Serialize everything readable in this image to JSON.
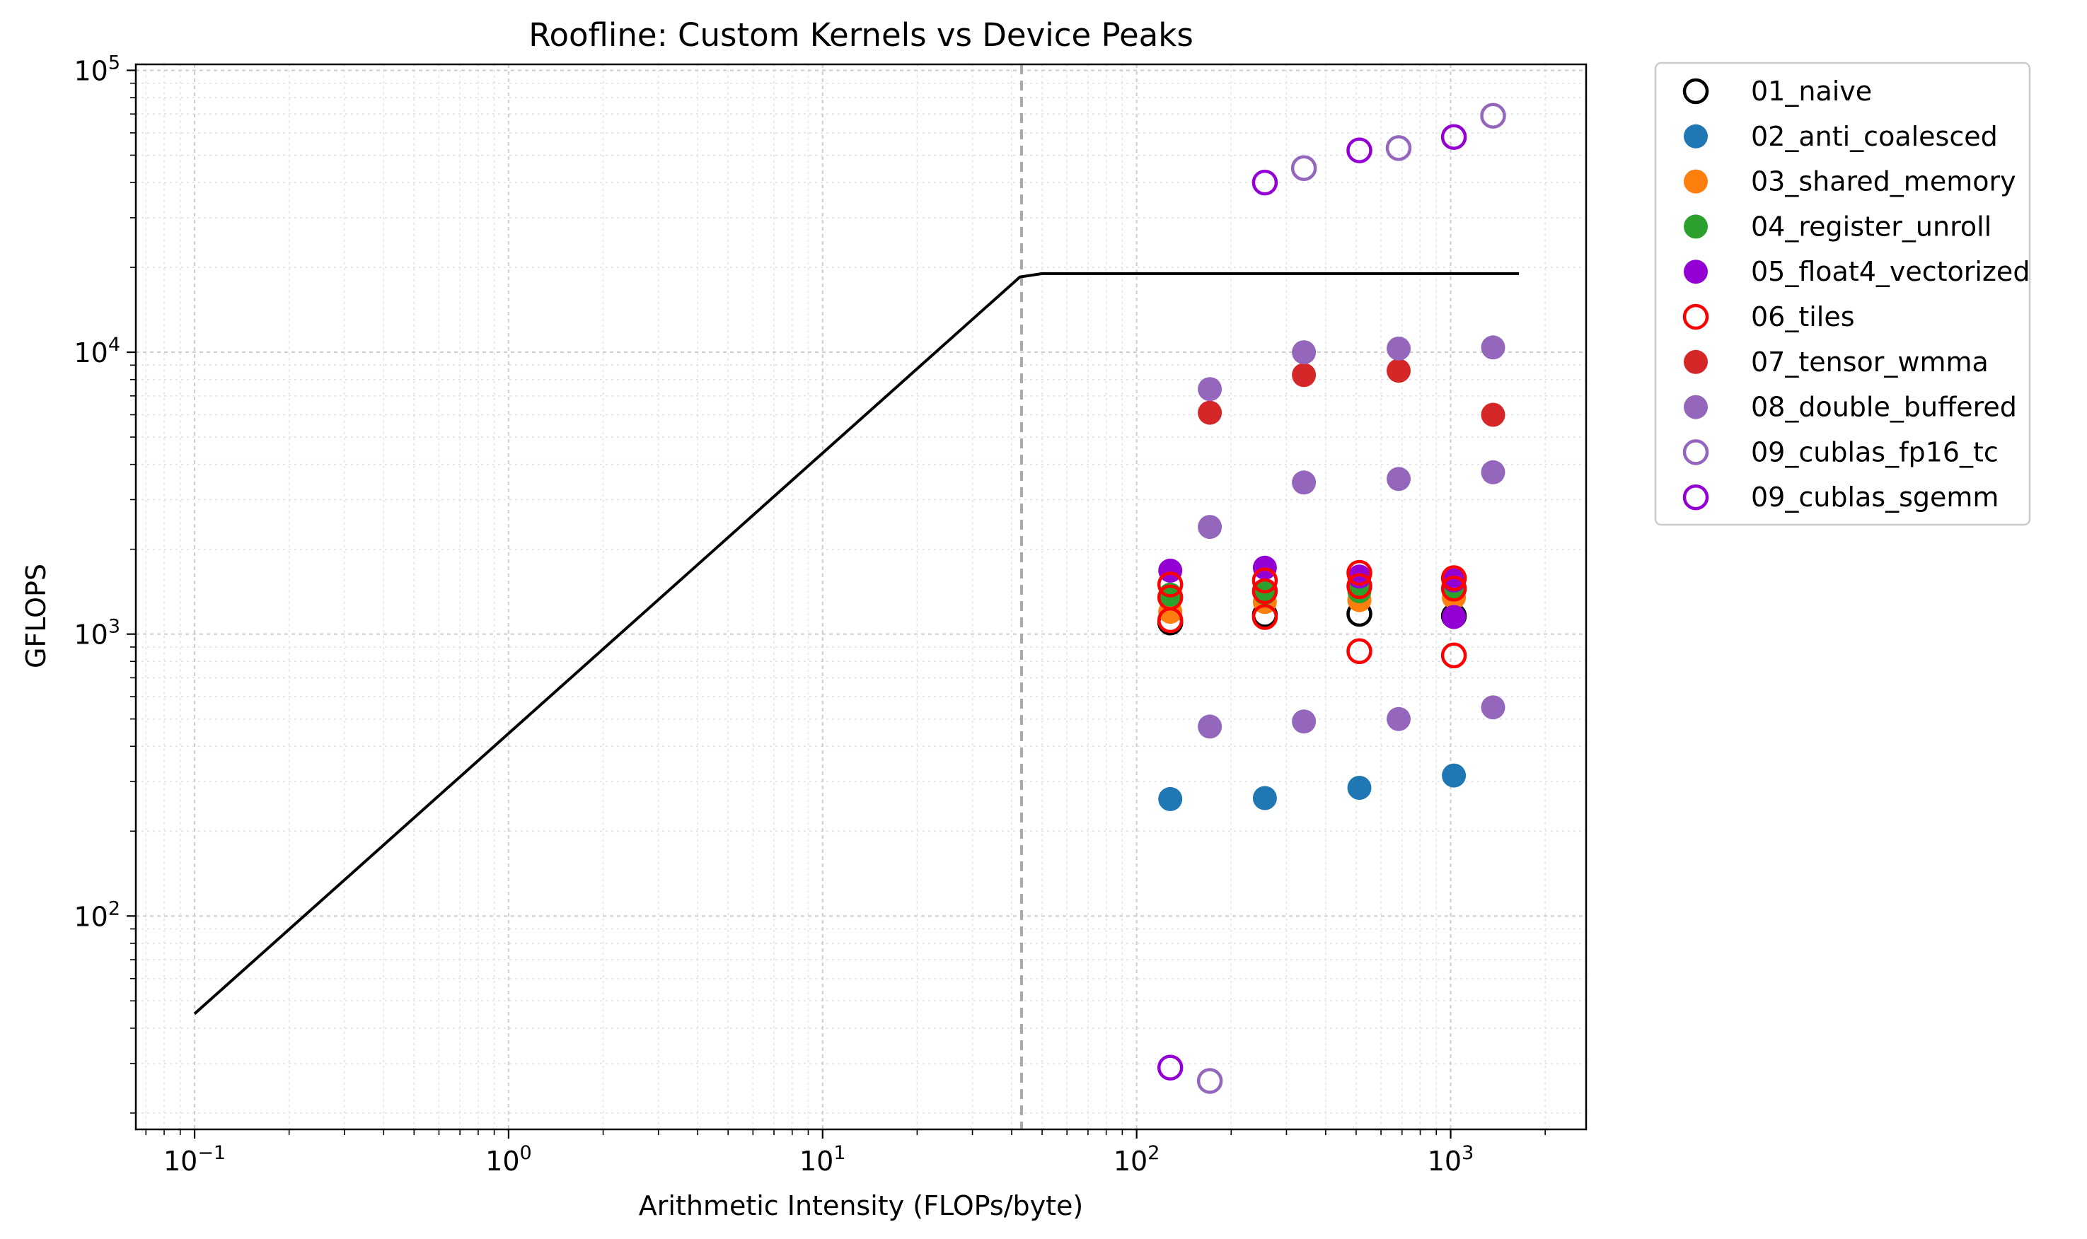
{
  "chart_data": {
    "type": "scatter",
    "title": "Roofline: Custom Kernels vs Device Peaks",
    "xlabel": "Arithmetic Intensity (FLOPs/byte)",
    "ylabel": "GFLOPS",
    "xscale": "log",
    "yscale": "log",
    "xlim": [
      0.065,
      2700
    ],
    "ylim": [
      17.5,
      105000
    ],
    "grid": true,
    "legend_position": "outside-right",
    "x_ticks": [
      {
        "value": 0.1,
        "base": "10",
        "exp": "−1"
      },
      {
        "value": 1,
        "base": "10",
        "exp": "0"
      },
      {
        "value": 10,
        "base": "10",
        "exp": "1"
      },
      {
        "value": 100,
        "base": "10",
        "exp": "2"
      },
      {
        "value": 1000,
        "base": "10",
        "exp": "3"
      }
    ],
    "y_ticks": [
      {
        "value": 100,
        "base": "10",
        "exp": "2"
      },
      {
        "value": 1000,
        "base": "10",
        "exp": "3"
      },
      {
        "value": 10000,
        "base": "10",
        "exp": "4"
      },
      {
        "value": 100000,
        "base": "10",
        "exp": "5"
      }
    ],
    "roofline": {
      "x": [
        0.1,
        42.5,
        50,
        1650
      ],
      "y": [
        45,
        18500,
        19000,
        19000
      ],
      "color": "#000000"
    },
    "ridge_point": {
      "x": 43,
      "color": "#aaaaaa"
    },
    "series": [
      {
        "name": "01_naive",
        "marker": "hollow",
        "color": "#000000",
        "points": [
          [
            128,
            1100
          ],
          [
            256,
            1170
          ],
          [
            512,
            1180
          ],
          [
            1024,
            1160
          ]
        ]
      },
      {
        "name": "02_anti_coalesced",
        "marker": "filled",
        "color": "#1f77b4",
        "points": [
          [
            128,
            260
          ],
          [
            256,
            262
          ],
          [
            512,
            285
          ],
          [
            1024,
            315
          ]
        ]
      },
      {
        "name": "03_shared_memory",
        "marker": "filled",
        "color": "#ff7f0e",
        "points": [
          [
            128,
            1200
          ],
          [
            256,
            1300
          ],
          [
            512,
            1320
          ],
          [
            1024,
            1350
          ]
        ]
      },
      {
        "name": "04_register_unroll",
        "marker": "filled",
        "color": "#2ca02c",
        "points": [
          [
            128,
            1380
          ],
          [
            256,
            1400
          ],
          [
            512,
            1420
          ],
          [
            1024,
            1450
          ]
        ]
      },
      {
        "name": "05_float4_vectorized",
        "marker": "filled",
        "color": "#9400d3",
        "points": [
          [
            128,
            1680
          ],
          [
            256,
            1720
          ],
          [
            512,
            1600
          ],
          [
            1024,
            1550
          ],
          [
            1024,
            1150
          ]
        ]
      },
      {
        "name": "06_tiles",
        "marker": "hollow",
        "color": "#ff0000",
        "points": [
          [
            128,
            1500
          ],
          [
            128,
            1350
          ],
          [
            128,
            1120
          ],
          [
            256,
            1550
          ],
          [
            256,
            1420
          ],
          [
            256,
            1150
          ],
          [
            512,
            1650
          ],
          [
            512,
            1480
          ],
          [
            512,
            870
          ],
          [
            1024,
            1580
          ],
          [
            1024,
            1450
          ],
          [
            1024,
            840
          ]
        ]
      },
      {
        "name": "07_tensor_wmma",
        "marker": "filled",
        "color": "#d62728",
        "points": [
          [
            171,
            6100
          ],
          [
            341,
            8300
          ],
          [
            683,
            8600
          ],
          [
            1365,
            6000
          ]
        ]
      },
      {
        "name": "08_double_buffered",
        "marker": "filled",
        "color": "#9467bd",
        "points": [
          [
            171,
            7400
          ],
          [
            171,
            2400
          ],
          [
            171,
            470
          ],
          [
            341,
            10000
          ],
          [
            341,
            3450
          ],
          [
            341,
            490
          ],
          [
            683,
            10300
          ],
          [
            683,
            3550
          ],
          [
            683,
            500
          ],
          [
            1365,
            10400
          ],
          [
            1365,
            3750
          ],
          [
            1365,
            550
          ]
        ]
      },
      {
        "name": "09_cublas_fp16_tc",
        "marker": "hollow",
        "color": "#9467bd",
        "points": [
          [
            341,
            45000
          ],
          [
            683,
            53000
          ],
          [
            1365,
            69000
          ],
          [
            171,
            26
          ]
        ]
      },
      {
        "name": "09_cublas_sgemm",
        "marker": "hollow",
        "color": "#9400d3",
        "points": [
          [
            256,
            40000
          ],
          [
            512,
            52000
          ],
          [
            1024,
            58000
          ],
          [
            128,
            29
          ]
        ]
      }
    ]
  }
}
